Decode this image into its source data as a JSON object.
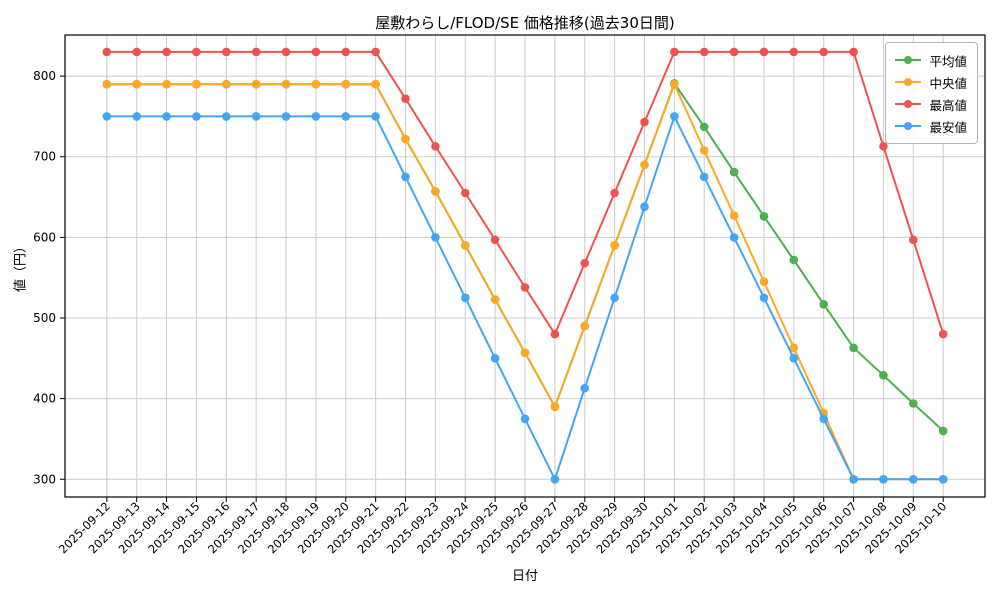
{
  "chart_data": {
    "type": "line",
    "title": "屋敷わらし/FLOD/SE 価格推移(過去30日間)",
    "xlabel": "日付",
    "ylabel": "値（円）",
    "ylim": [
      278,
      851
    ],
    "yticks": [
      300,
      400,
      500,
      600,
      700,
      800
    ],
    "grid": true,
    "legend_position": "upper right",
    "grid_color": "#cccccc",
    "categories": [
      "2025-09-12",
      "2025-09-13",
      "2025-09-14",
      "2025-09-15",
      "2025-09-16",
      "2025-09-17",
      "2025-09-18",
      "2025-09-19",
      "2025-09-20",
      "2025-09-21",
      "2025-09-22",
      "2025-09-23",
      "2025-09-24",
      "2025-09-25",
      "2025-09-26",
      "2025-09-27",
      "2025-09-28",
      "2025-09-29",
      "2025-09-30",
      "2025-10-01",
      "2025-10-02",
      "2025-10-03",
      "2025-10-04",
      "2025-10-05",
      "2025-10-06",
      "2025-10-07",
      "2025-10-08",
      "2025-10-09",
      "2025-10-10"
    ],
    "series": [
      {
        "name": "平均値",
        "color": "#4CAF50",
        "values": [
          790,
          790,
          790,
          790,
          790,
          790,
          790,
          790,
          790,
          790,
          722,
          657,
          590,
          523,
          457,
          390,
          490,
          590,
          690,
          791,
          737,
          681,
          626,
          572,
          517,
          463,
          429,
          394,
          360
        ]
      },
      {
        "name": "中央値",
        "color": "#FFA726",
        "values": [
          790,
          790,
          790,
          790,
          790,
          790,
          790,
          790,
          790,
          790,
          722,
          657,
          590,
          523,
          457,
          390,
          490,
          590,
          690,
          790,
          708,
          627,
          545,
          463,
          382,
          300,
          300,
          300,
          300
        ]
      },
      {
        "name": "最高値",
        "color": "#EF5350",
        "values": [
          830,
          830,
          830,
          830,
          830,
          830,
          830,
          830,
          830,
          830,
          772,
          713,
          655,
          597,
          538,
          480,
          568,
          655,
          743,
          830,
          830,
          830,
          830,
          830,
          830,
          830,
          713,
          597,
          480
        ]
      },
      {
        "name": "最安値",
        "color": "#42A5F5",
        "values": [
          750,
          750,
          750,
          750,
          750,
          750,
          750,
          750,
          750,
          750,
          675,
          600,
          525,
          450,
          375,
          300,
          413,
          525,
          638,
          750,
          675,
          600,
          525,
          450,
          375,
          300,
          300,
          300,
          300
        ]
      }
    ]
  }
}
